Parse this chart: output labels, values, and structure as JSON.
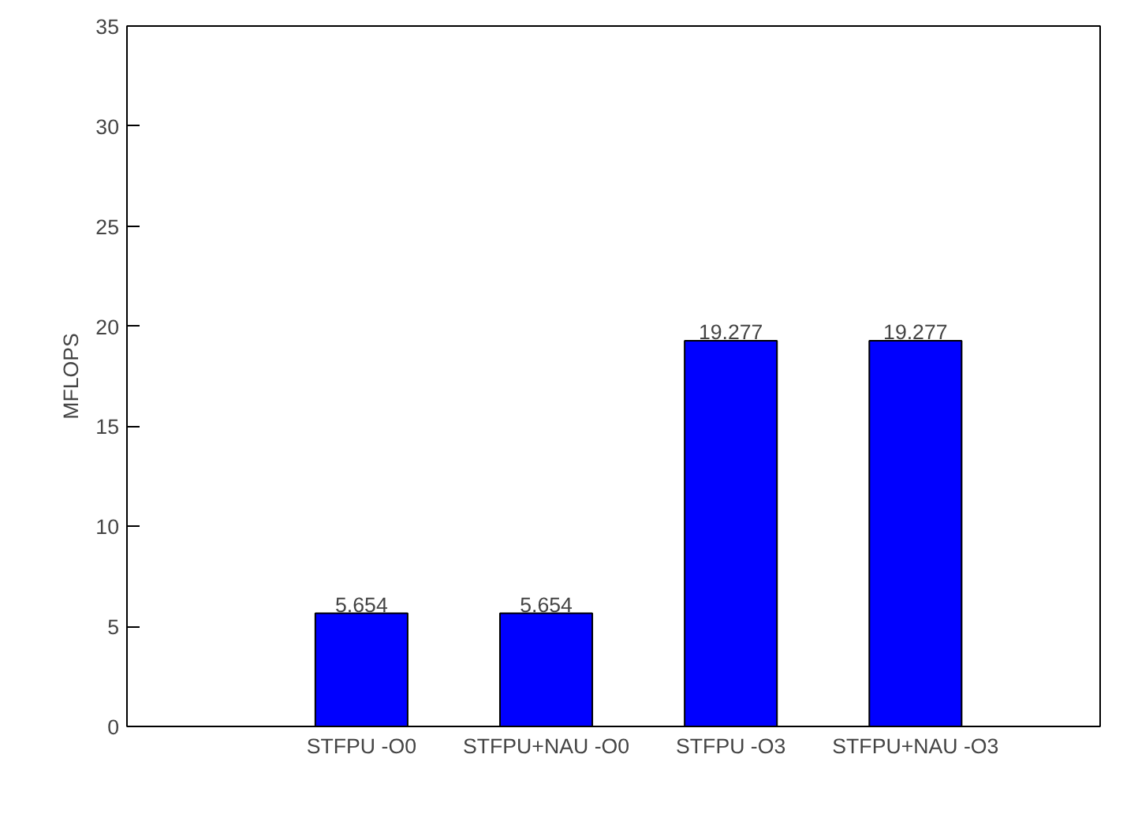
{
  "chart_data": {
    "type": "bar",
    "ylabel": "MFLOPS",
    "categories": [
      "STFPU -O0",
      "STFPU+NAU -O0",
      "STFPU -O3",
      "STFPU+NAU -O3"
    ],
    "values": [
      5.654,
      5.654,
      19.277,
      19.277
    ],
    "color": "#0000ff",
    "ylim": [
      0,
      35
    ],
    "yticks": [
      0,
      5,
      10,
      15,
      20,
      25,
      30,
      35
    ],
    "data_labels": true
  }
}
